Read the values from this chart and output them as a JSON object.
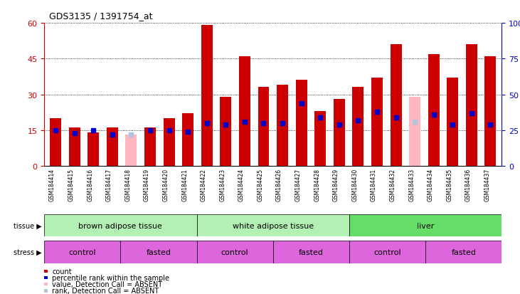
{
  "title": "GDS3135 / 1391754_at",
  "samples": [
    "GSM184414",
    "GSM184415",
    "GSM184416",
    "GSM184417",
    "GSM184418",
    "GSM184419",
    "GSM184420",
    "GSM184421",
    "GSM184422",
    "GSM184423",
    "GSM184424",
    "GSM184425",
    "GSM184426",
    "GSM184427",
    "GSM184428",
    "GSM184429",
    "GSM184430",
    "GSM184431",
    "GSM184432",
    "GSM184433",
    "GSM184434",
    "GSM184435",
    "GSM184436",
    "GSM184437"
  ],
  "count_values": [
    20,
    16,
    14,
    16,
    13,
    16,
    20,
    22,
    59,
    29,
    46,
    33,
    34,
    36,
    23,
    28,
    33,
    37,
    51,
    29,
    47,
    37,
    51,
    46
  ],
  "count_absent": [
    false,
    false,
    false,
    false,
    true,
    false,
    false,
    false,
    false,
    false,
    false,
    false,
    false,
    false,
    false,
    false,
    false,
    false,
    false,
    true,
    false,
    false,
    false,
    false
  ],
  "rank_values": [
    25,
    23,
    25,
    22,
    22,
    25,
    25,
    24,
    30,
    29,
    31,
    30,
    30,
    44,
    34,
    29,
    32,
    38,
    34,
    31,
    36,
    29,
    37,
    29
  ],
  "rank_absent": [
    false,
    false,
    false,
    false,
    true,
    false,
    false,
    false,
    false,
    false,
    false,
    false,
    false,
    false,
    false,
    false,
    false,
    false,
    false,
    true,
    false,
    false,
    false,
    false
  ],
  "tissue_labels": [
    "brown adipose tissue",
    "white adipose tissue",
    "liver"
  ],
  "tissue_starts": [
    0,
    8,
    16
  ],
  "tissue_ends": [
    8,
    16,
    24
  ],
  "tissue_colors": [
    "#b3f0b3",
    "#b3f0b3",
    "#66dd66"
  ],
  "stress_groups": [
    [
      0,
      4,
      "control"
    ],
    [
      4,
      8,
      "fasted"
    ],
    [
      8,
      12,
      "control"
    ],
    [
      12,
      16,
      "fasted"
    ],
    [
      16,
      20,
      "control"
    ],
    [
      20,
      24,
      "fasted"
    ]
  ],
  "stress_color": "#dd66dd",
  "bar_color": "#cc0000",
  "bar_absent_color": "#ffb6c1",
  "rank_color": "#0000cc",
  "rank_absent_color": "#b0c4de",
  "ylim_left": [
    0,
    60
  ],
  "ylim_right": [
    0,
    100
  ],
  "yticks_left": [
    0,
    15,
    30,
    45,
    60
  ],
  "yticks_right": [
    0,
    25,
    50,
    75,
    100
  ],
  "xticklabel_bg": "#d3d3d3",
  "background_color": "#ffffff"
}
